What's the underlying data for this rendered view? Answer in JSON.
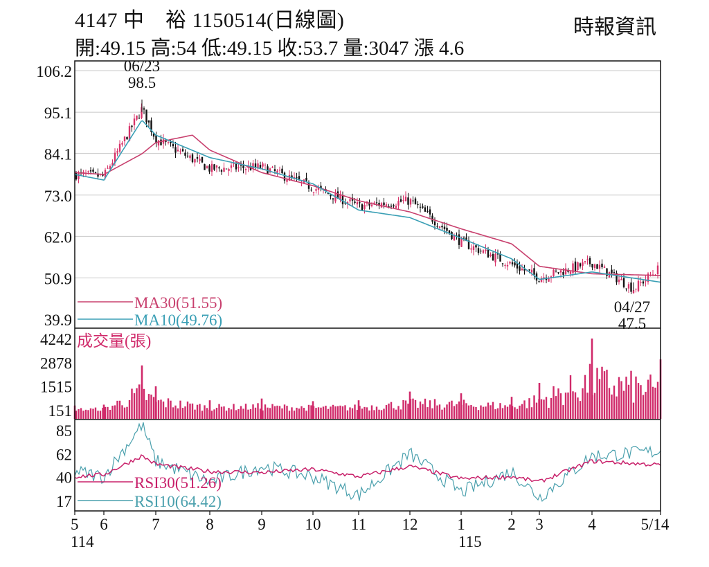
{
  "header": {
    "title": "4147 中　裕 1150514(日線圖)",
    "source": "時報資訊",
    "ohlc": "開:49.15 高:54 低:49.15 收:53.7 量:3047 漲 4.6"
  },
  "colors": {
    "up": "#d8336a",
    "down": "#111111",
    "ma30": "#c8406e",
    "ma10": "#3a9fb5",
    "volume": "#d02a6a",
    "rsi30": "#c8206a",
    "rsi10": "#4aa0ad",
    "grid": "#c8c8c8"
  },
  "chart_data": [
    {
      "type": "candlestick",
      "panel": "price",
      "yticks": [
        "106.2",
        "95.1",
        "84.1",
        "73.0",
        "62.0",
        "50.9",
        "39.9"
      ],
      "ylim": [
        39.9,
        106.2
      ],
      "grid": true,
      "annotations": [
        {
          "label_date": "06/23",
          "label_value": "98.5",
          "date": "2025-06-23",
          "value": 98.5
        },
        {
          "label_date": "04/27",
          "label_value": "47.5",
          "date": "2026-04-27",
          "value": 47.5
        }
      ],
      "legend": [
        {
          "label": "MA30(51.55)",
          "color": "#c8406e"
        },
        {
          "label": "MA10(49.76)",
          "color": "#3a9fb5"
        }
      ],
      "series": [
        {
          "name": "MA30",
          "x": [
            "2025-05",
            "2025-06",
            "2025-06-23",
            "2025-07",
            "2025-07-22",
            "2025-08",
            "2025-09",
            "2025-10",
            "2025-11",
            "2025-12",
            "2026-01",
            "2026-02",
            "2026-03",
            "2026-04",
            "2026-05-14"
          ],
          "values": [
            79,
            78.5,
            84,
            87,
            89,
            85,
            79,
            75.5,
            71.5,
            68.5,
            64,
            60,
            54,
            52,
            51.55
          ]
        },
        {
          "name": "MA10",
          "x": [
            "2025-05",
            "2025-06",
            "2025-06-23",
            "2025-07",
            "2025-08",
            "2025-09",
            "2025-10",
            "2025-11",
            "2025-12",
            "2026-01",
            "2026-02",
            "2026-03",
            "2026-04",
            "2026-05-14"
          ],
          "values": [
            78.5,
            77,
            93,
            89,
            83,
            80,
            76,
            69,
            67,
            61.5,
            56,
            50.5,
            52.5,
            49.76
          ]
        }
      ],
      "candles_sampled": [
        {
          "date": "2025-05",
          "open": 79,
          "close": 78.5,
          "high": 80,
          "low": 77.5
        },
        {
          "date": "2025-06",
          "open": 76.5,
          "close": 78,
          "high": 79,
          "low": 75.5
        },
        {
          "date": "2025-06-23",
          "open": 92,
          "close": 96,
          "high": 98.5,
          "low": 90
        },
        {
          "date": "2025-07",
          "open": 90,
          "close": 88,
          "high": 92,
          "low": 86
        },
        {
          "date": "2025-08",
          "open": 82,
          "close": 80,
          "high": 84,
          "low": 78
        },
        {
          "date": "2025-09",
          "open": 81,
          "close": 80.5,
          "high": 82.5,
          "low": 79
        },
        {
          "date": "2025-10",
          "open": 76,
          "close": 75,
          "high": 77,
          "low": 73
        },
        {
          "date": "2025-11",
          "open": 71,
          "close": 70,
          "high": 72,
          "low": 68
        },
        {
          "date": "2025-12",
          "open": 69,
          "close": 71.5,
          "high": 72,
          "low": 67
        },
        {
          "date": "2026-01",
          "open": 62,
          "close": 60.5,
          "high": 63,
          "low": 59.5
        },
        {
          "date": "2026-02",
          "open": 56,
          "close": 54.5,
          "high": 57,
          "low": 53.5
        },
        {
          "date": "2026-03",
          "open": 50.5,
          "close": 51,
          "high": 52,
          "low": 49
        },
        {
          "date": "2026-04",
          "open": 53,
          "close": 55,
          "high": 57.5,
          "low": 52
        },
        {
          "date": "2026-04-27",
          "open": 48.5,
          "close": 48,
          "high": 49.5,
          "low": 47.5
        },
        {
          "date": "2026-05-14",
          "open": 49.15,
          "close": 53.7,
          "high": 54,
          "low": 49.15
        }
      ]
    },
    {
      "type": "bar",
      "panel": "volume",
      "title": "成交量(張)",
      "yticks": [
        "4242",
        "2878",
        "1515",
        "151"
      ],
      "ylim": [
        151,
        4242
      ],
      "sampled": [
        {
          "date": "2025-05",
          "value": 400
        },
        {
          "date": "2025-06",
          "value": 450
        },
        {
          "date": "2025-06-23",
          "value": 2700
        },
        {
          "date": "2025-07",
          "value": 1500
        },
        {
          "date": "2025-08",
          "value": 700
        },
        {
          "date": "2025-09",
          "value": 800
        },
        {
          "date": "2025-10",
          "value": 650
        },
        {
          "date": "2025-11",
          "value": 700
        },
        {
          "date": "2025-12",
          "value": 1200
        },
        {
          "date": "2026-01",
          "value": 1100
        },
        {
          "date": "2026-02",
          "value": 900
        },
        {
          "date": "2026-03",
          "value": 1700
        },
        {
          "date": "2026-04",
          "value": 4242
        },
        {
          "date": "2026-05-14",
          "value": 3047
        }
      ]
    },
    {
      "type": "line",
      "panel": "rsi",
      "yticks": [
        "85",
        "62",
        "40",
        "17"
      ],
      "ylim": [
        17,
        85
      ],
      "legend": [
        {
          "label": "RSI30(51.26)",
          "color": "#c8206a"
        },
        {
          "label": "RSI10(64.42)",
          "color": "#4aa0ad"
        }
      ],
      "series": [
        {
          "name": "RSI30",
          "x": [
            "2025-05",
            "2025-06",
            "2025-06-23",
            "2025-07",
            "2025-08",
            "2025-09",
            "2025-10",
            "2025-11",
            "2025-12",
            "2026-01",
            "2026-02",
            "2026-03",
            "2026-04",
            "2026-05-14"
          ],
          "values": [
            40,
            42,
            60,
            52,
            45,
            44,
            47,
            40,
            50,
            38,
            40,
            35,
            55,
            51.26
          ]
        },
        {
          "name": "RSI10",
          "x": [
            "2025-05",
            "2025-06",
            "2025-06-23",
            "2025-07",
            "2025-08",
            "2025-09",
            "2025-10",
            "2025-11",
            "2025-12",
            "2026-01",
            "2026-02",
            "2026-03",
            "2026-04",
            "2026-05-14"
          ],
          "values": [
            45,
            40,
            90,
            55,
            35,
            50,
            40,
            22,
            62,
            25,
            45,
            20,
            60,
            64.42
          ]
        }
      ]
    }
  ],
  "xaxis": {
    "ticks": [
      {
        "label": "5",
        "date": "2025-05"
      },
      {
        "label": "6",
        "date": "2025-06"
      },
      {
        "label": "7",
        "date": "2025-07"
      },
      {
        "label": "8",
        "date": "2025-08"
      },
      {
        "label": "9",
        "date": "2025-09"
      },
      {
        "label": "10",
        "date": "2025-10"
      },
      {
        "label": "11",
        "date": "2025-11"
      },
      {
        "label": "12",
        "date": "2025-12"
      },
      {
        "label": "1",
        "date": "2026-01"
      },
      {
        "label": "2",
        "date": "2026-02"
      },
      {
        "label": "3",
        "date": "2026-03"
      },
      {
        "label": "4",
        "date": "2026-04"
      },
      {
        "label": "5/14",
        "date": "2026-05-14"
      }
    ],
    "year_labels": [
      {
        "label": "114",
        "date": "2025-05"
      },
      {
        "label": "115",
        "date": "2026-01"
      }
    ]
  }
}
